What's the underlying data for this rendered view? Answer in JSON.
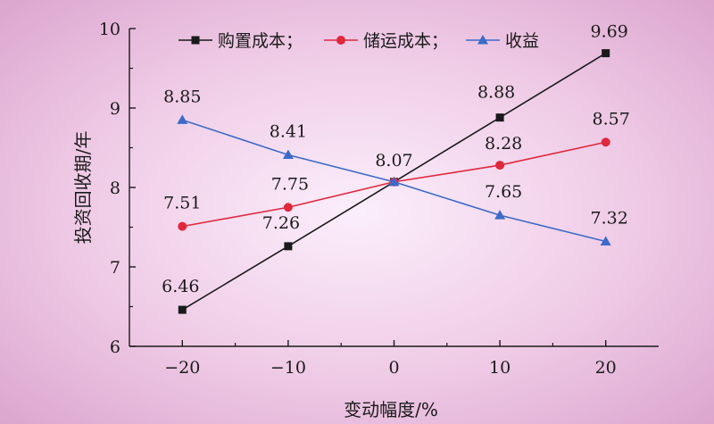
{
  "chart_data": {
    "type": "line",
    "xlabel": "变动幅度/%",
    "ylabel": "投资回收期/年",
    "x": [
      -20,
      -10,
      0,
      10,
      20
    ],
    "xticks": [
      "−20",
      "−10",
      "0",
      "10",
      "20"
    ],
    "ylim": [
      6,
      10
    ],
    "yticks": [
      "6",
      "7",
      "8",
      "9",
      "10"
    ],
    "grid": false,
    "legend": "top",
    "series": [
      {
        "name": "购置成本；",
        "values": [
          6.46,
          7.26,
          8.07,
          8.88,
          9.69
        ],
        "labels": [
          "6.46",
          "7.26",
          "8.07",
          "8.88",
          "9.69"
        ],
        "color": "#1a1a1a",
        "marker": "square"
      },
      {
        "name": "储运成本；",
        "values": [
          7.51,
          7.75,
          8.07,
          8.28,
          8.57
        ],
        "labels": [
          "7.51",
          "7.75",
          "",
          "8.28",
          "8.57"
        ],
        "color": "#e0283c",
        "marker": "circle"
      },
      {
        "name": "收益",
        "values": [
          8.85,
          8.41,
          8.07,
          7.65,
          7.32
        ],
        "labels": [
          "8.85",
          "8.41",
          "",
          "7.65",
          "7.32"
        ],
        "color": "#3c6ac8",
        "marker": "triangle"
      }
    ]
  },
  "colors": {
    "bg_center": "#fbeefb",
    "bg_edge": "#dca6cf",
    "axis": "#1a1a1a"
  }
}
